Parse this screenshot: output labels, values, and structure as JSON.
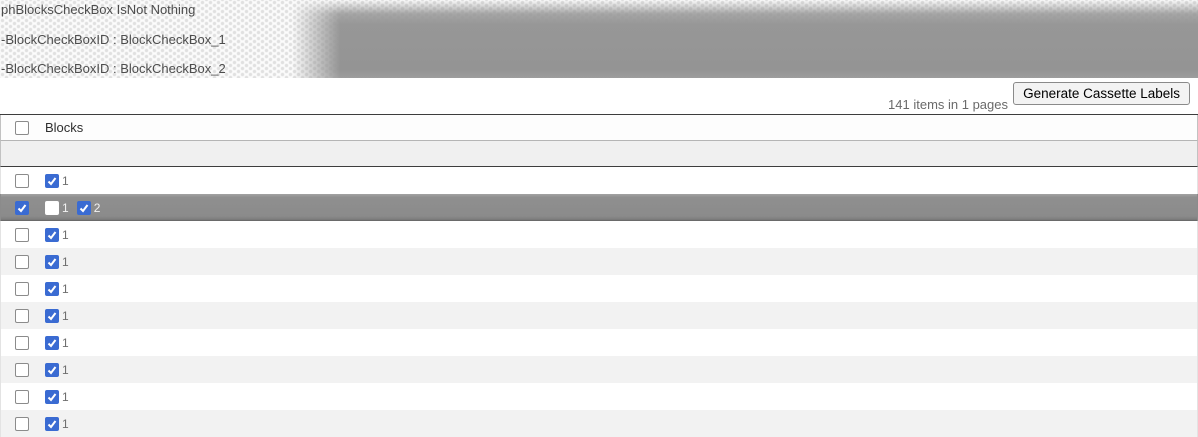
{
  "debug_panel": {
    "lines": [
      "phBlocksCheckBox IsNot Nothing",
      "-BlockCheckBoxID : BlockCheckBox_1",
      "-BlockCheckBoxID : BlockCheckBox_2"
    ]
  },
  "toolbar": {
    "items_summary": "141 items in 1 pages",
    "generate_button_label": "Generate Cassette Labels"
  },
  "table": {
    "columns": [
      {
        "label": "Blocks"
      }
    ],
    "select_all_checked": false,
    "rows": [
      {
        "selected": false,
        "row_checked": false,
        "blocks": [
          {
            "label": "1",
            "checked": true
          }
        ]
      },
      {
        "selected": true,
        "row_checked": true,
        "blocks": [
          {
            "label": "1",
            "checked": false
          },
          {
            "label": "2",
            "checked": true
          }
        ]
      },
      {
        "selected": false,
        "row_checked": false,
        "blocks": [
          {
            "label": "1",
            "checked": true
          }
        ]
      },
      {
        "selected": false,
        "row_checked": false,
        "blocks": [
          {
            "label": "1",
            "checked": true
          }
        ]
      },
      {
        "selected": false,
        "row_checked": false,
        "blocks": [
          {
            "label": "1",
            "checked": true
          }
        ]
      },
      {
        "selected": false,
        "row_checked": false,
        "blocks": [
          {
            "label": "1",
            "checked": true
          }
        ]
      },
      {
        "selected": false,
        "row_checked": false,
        "blocks": [
          {
            "label": "1",
            "checked": true
          }
        ]
      },
      {
        "selected": false,
        "row_checked": false,
        "blocks": [
          {
            "label": "1",
            "checked": true
          }
        ]
      },
      {
        "selected": false,
        "row_checked": false,
        "blocks": [
          {
            "label": "1",
            "checked": true
          }
        ]
      },
      {
        "selected": false,
        "row_checked": false,
        "blocks": [
          {
            "label": "1",
            "checked": true
          }
        ]
      }
    ]
  },
  "colors": {
    "checkbox_checked_blue": "#3a6bd2",
    "selected_row_gray": "#8b8b8b",
    "grid_border_dark": "#3d3d3d",
    "debug_text": "#4d4d4d"
  }
}
